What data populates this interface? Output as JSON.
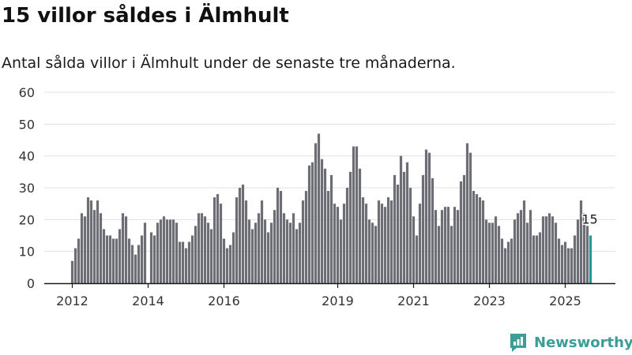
{
  "title": "15 villor såldes i Älmhult",
  "subtitle": "Antal sålda villor i Älmhult under de senaste tre månaderna.",
  "brand": {
    "name": "Newsworthy"
  },
  "colors": {
    "bar": "#6d6d75",
    "highlight": "#1d9a96",
    "grid": "#e0e0e0",
    "axis": "#1a1a1a",
    "brand": "#3a9d96"
  },
  "chart_data": {
    "type": "bar",
    "title": "",
    "xlabel": "",
    "ylabel": "",
    "ylim": [
      0,
      60
    ],
    "yticks": [
      0,
      10,
      20,
      30,
      40,
      50,
      60
    ],
    "xticks": [
      2012,
      2014,
      2016,
      2019,
      2021,
      2023,
      2025
    ],
    "grid": true,
    "start": "2012-01",
    "frequency": "monthly",
    "highlight_label": "15",
    "values": [
      7,
      11,
      14,
      22,
      21,
      27,
      26,
      23,
      26,
      22,
      17,
      15,
      15,
      14,
      14,
      17,
      22,
      21,
      14,
      12,
      9,
      12,
      15,
      19,
      0,
      16,
      15,
      19,
      20,
      21,
      20,
      20,
      20,
      19,
      13,
      13,
      11,
      13,
      15,
      18,
      22,
      22,
      21,
      19,
      17,
      27,
      28,
      25,
      14,
      11,
      12,
      16,
      27,
      30,
      31,
      26,
      20,
      17,
      19,
      22,
      26,
      20,
      16,
      19,
      23,
      30,
      29,
      22,
      20,
      19,
      22,
      17,
      19,
      26,
      29,
      37,
      38,
      44,
      47,
      39,
      36,
      29,
      34,
      25,
      24,
      20,
      25,
      30,
      35,
      43,
      43,
      36,
      27,
      25,
      20,
      19,
      18,
      26,
      25,
      24,
      27,
      26,
      34,
      31,
      40,
      35,
      38,
      30,
      21,
      15,
      25,
      34,
      42,
      41,
      33,
      23,
      18,
      23,
      24,
      24,
      18,
      24,
      23,
      32,
      34,
      44,
      41,
      29,
      28,
      27,
      26,
      20,
      19,
      19,
      21,
      18,
      14,
      11,
      13,
      14,
      20,
      22,
      23,
      26,
      19,
      23,
      15,
      15,
      16,
      21,
      21,
      22,
      21,
      19,
      14,
      12,
      13,
      11,
      11,
      15,
      20,
      26,
      22,
      18,
      15
    ]
  }
}
